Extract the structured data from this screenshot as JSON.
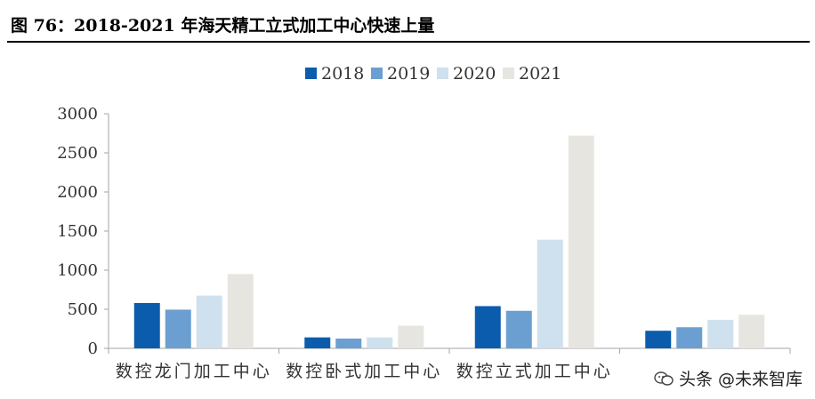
{
  "figure": {
    "title": "图  76：2018-2021 年海天精工立式加工中心快速上量"
  },
  "watermark": {
    "text": "头条 @未来智库",
    "icon": "wechat-icon"
  },
  "chart_data": {
    "type": "bar",
    "title": "",
    "xlabel": "",
    "ylabel": "",
    "categories": [
      "数控龙门加工中心",
      "数控卧式加工中心",
      "数控立式加工中心",
      ""
    ],
    "series": [
      {
        "name": "2018",
        "color": "#0b5cad",
        "values": [
          580,
          140,
          540,
          225
        ]
      },
      {
        "name": "2019",
        "color": "#6b9fd1",
        "values": [
          495,
          125,
          480,
          270
        ]
      },
      {
        "name": "2020",
        "color": "#cfe0ee",
        "values": [
          675,
          140,
          1390,
          365
        ]
      },
      {
        "name": "2021",
        "color": "#e7e5e0",
        "values": [
          950,
          290,
          2720,
          430
        ]
      }
    ],
    "ylim": [
      0,
      3000
    ],
    "yticks": [
      0,
      500,
      1000,
      1500,
      2000,
      2500,
      3000
    ],
    "grid": false,
    "legend_position": "top-center"
  }
}
